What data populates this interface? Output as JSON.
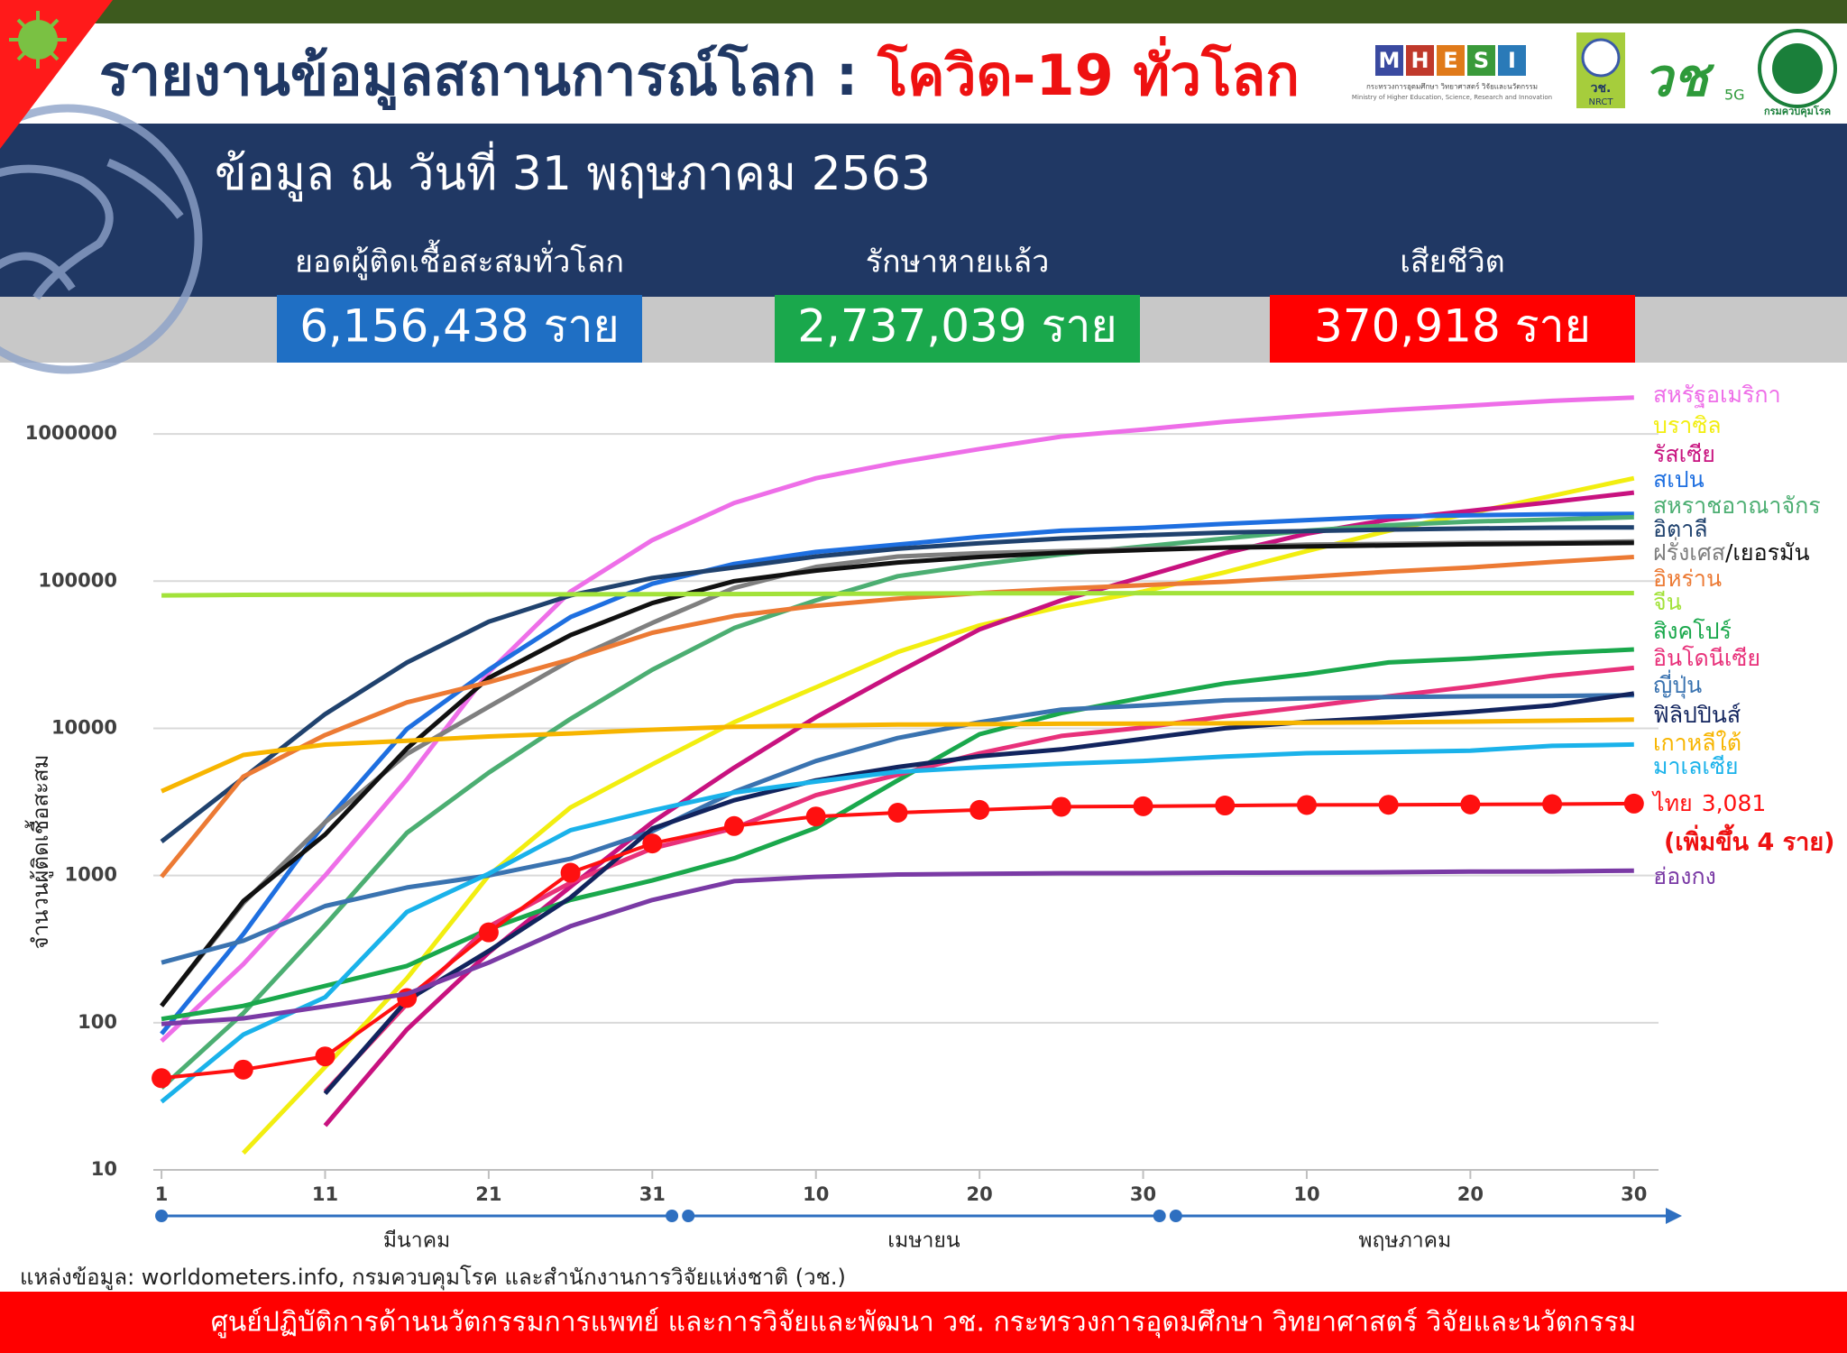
{
  "header": {
    "title": "รายงานข้อมูลสถานการณ์โลก : ",
    "title_highlight": "โควิด-19 ทั่วโลก",
    "date": "ข้อมูล ณ วันที่ 31 พฤษภาคม 2563"
  },
  "logos": {
    "mhesi": [
      "M",
      "H",
      "E",
      "S",
      "I"
    ],
    "mhesi_caption": "กระทรวงการอุดมศึกษา วิทยาศาสตร์ วิจัยและนวัตกรรม",
    "mhesi_caption_en": "Ministry of Higher Education, Science, Research and Innovation",
    "nrct": "วช.",
    "nrct_caption": "NRCT",
    "vch": "วช",
    "vch_5g": "5G",
    "ddc": "กรมควบคุมโรค"
  },
  "stats": [
    {
      "label": "ยอดผู้ติดเชื้อสะสมทั่วโลก",
      "value": "6,156,438 ราย"
    },
    {
      "label": "รักษาหายแล้ว",
      "value": "2,737,039 ราย"
    },
    {
      "label": "เสียชีวิต",
      "value": "370,918 ราย"
    }
  ],
  "chart_data": {
    "type": "line",
    "y_label": "จำนวนผู้ติดเชื้อสะสม",
    "log_y": true,
    "grid": true,
    "x": [
      1,
      6,
      11,
      16,
      21,
      26,
      31,
      36,
      41,
      46,
      51,
      56,
      61,
      66,
      71,
      76,
      81,
      86,
      91
    ],
    "xlim": [
      0.5,
      92.5
    ],
    "xticks": [
      1,
      11,
      21,
      31,
      {
        "value": 41,
        "label": "10"
      },
      {
        "value": 51,
        "label": "20"
      },
      {
        "value": 61,
        "label": "30"
      },
      {
        "value": 71,
        "label": "10"
      },
      {
        "value": 81,
        "label": "20"
      },
      {
        "value": 91,
        "label": "30"
      }
    ],
    "months": [
      "มีนาคม",
      "เมษายน",
      "พฤษภาคม"
    ],
    "ylim": [
      10,
      2000000
    ],
    "yticks": [
      10,
      100,
      1000,
      10000,
      100000,
      1000000
    ],
    "series": [
      {
        "name": "สหรัฐอเมริกา",
        "color": "#ee6ee8",
        "values": [
          75,
          250,
          1000,
          4500,
          24000,
          85000,
          190000,
          340000,
          500000,
          640000,
          790000,
          960000,
          1070000,
          1210000,
          1330000,
          1450000,
          1560000,
          1680000,
          1770000
        ]
      },
      {
        "name": "บราซิล",
        "color": "#f2ee10",
        "values": [
          null,
          13,
          50,
          200,
          1000,
          2900,
          5700,
          11000,
          19000,
          33000,
          50000,
          67000,
          85000,
          115000,
          160000,
          220000,
          290000,
          380000,
          500000
        ]
      },
      {
        "name": "รัสเซีย",
        "color": "#c8127f",
        "values": [
          null,
          null,
          20,
          90,
          300,
          840,
          2300,
          5400,
          11900,
          24000,
          47000,
          74000,
          107000,
          155000,
          210000,
          262000,
          300000,
          345000,
          400000
        ]
      },
      {
        "name": "สเปน",
        "color": "#1e6fe0",
        "values": [
          84,
          400,
          2300,
          9900,
          25000,
          57000,
          96000,
          131000,
          158000,
          177000,
          200000,
          220000,
          230000,
          245000,
          260000,
          275000,
          280000,
          285000,
          286000
        ]
      },
      {
        "name": "สหราชอาณาจักร",
        "color": "#4cae72",
        "values": [
          36,
          116,
          460,
          1950,
          5000,
          11600,
          25000,
          48000,
          74000,
          108000,
          130000,
          152000,
          172000,
          195000,
          220000,
          240000,
          254000,
          262000,
          272000
        ]
      },
      {
        "name": "อิตาลี",
        "color": "#20426e",
        "values": [
          1700,
          4600,
          12500,
          28000,
          53000,
          80000,
          105000,
          124000,
          147000,
          166000,
          181000,
          195000,
          205000,
          214000,
          219000,
          224000,
          228000,
          231000,
          232000
        ]
      },
      {
        "name": "ฝรั่งเศส",
        "color": "#7f7f7f",
        "values": [
          130,
          650,
          2300,
          6700,
          14000,
          29000,
          52000,
          90000,
          125000,
          147000,
          155000,
          160000,
          166000,
          170000,
          177000,
          179000,
          182000,
          183000,
          186000
        ]
      },
      {
        "name": "/เยอรมัน",
        "color": "#111111",
        "values": [
          130,
          670,
          1900,
          7300,
          22000,
          43000,
          71000,
          100000,
          118000,
          134000,
          146000,
          156000,
          163000,
          169000,
          172000,
          175000,
          178000,
          180000,
          182000
        ]
      },
      {
        "name": "อิหร่าน",
        "color": "#ec7a34",
        "values": [
          980,
          4700,
          9000,
          15000,
          20600,
          29400,
          44600,
          58000,
          68000,
          76000,
          83000,
          89000,
          94000,
          99000,
          107000,
          116000,
          124000,
          135000,
          146000
        ]
      },
      {
        "name": "จีน",
        "color": "#a2e23a",
        "values": [
          79968,
          80651,
          80921,
          81033,
          81300,
          81340,
          81554,
          81669,
          81907,
          82295,
          82747,
          82804,
          82862,
          82881,
          82901,
          82929,
          82960,
          82985,
          82995
        ]
      },
      {
        "name": "สิงคโปร์",
        "color": "#1aa84c",
        "values": [
          106,
          130,
          178,
          243,
          432,
          683,
          926,
          1309,
          2108,
          4427,
          9125,
          12693,
          16169,
          20198,
          23336,
          28038,
          29812,
          32343,
          34366
        ]
      },
      {
        "name": "อินโดนีเซีย",
        "color": "#e8317a",
        "values": [
          null,
          null,
          34,
          134,
          450,
          893,
          1528,
          2092,
          3512,
          4839,
          6760,
          8882,
          10118,
          12071,
          14032,
          16496,
          19189,
          22750,
          25773
        ]
      },
      {
        "name": "ญี่ปุ่น",
        "color": "#3a73b0",
        "values": [
          256,
          360,
          620,
          830,
          1000,
          1300,
          2000,
          3700,
          6000,
          8600,
          11000,
          13400,
          14300,
          15500,
          16000,
          16300,
          16500,
          16600,
          16800
        ]
      },
      {
        "name": "ฟิลิปปินส์",
        "color": "#12245e",
        "values": [
          null,
          null,
          33,
          142,
          307,
          707,
          2084,
          3246,
          4428,
          5453,
          6459,
          7192,
          8488,
          10004,
          11086,
          11876,
          12942,
          14319,
          17224
        ]
      },
      {
        "name": "เกาหลีใต้",
        "color": "#f7b500",
        "values": [
          3736,
          6593,
          7755,
          8236,
          8799,
          9241,
          9786,
          10237,
          10450,
          10613,
          10674,
          10738,
          10774,
          10822,
          10909,
          10991,
          11110,
          11265,
          11468
        ]
      },
      {
        "name": "มาเลเซีย",
        "color": "#1ab2ea",
        "values": [
          29,
          83,
          149,
          566,
          1030,
          2031,
          2766,
          3662,
          4346,
          5072,
          5425,
          5742,
          6002,
          6428,
          6779,
          6894,
          7059,
          7604,
          7762
        ]
      },
      {
        "name": "ไทย",
        "color": "#ff1010",
        "values": [
          42,
          48,
          59,
          147,
          411,
          1045,
          1651,
          2169,
          2518,
          2672,
          2792,
          2931,
          2954,
          2989,
          3015,
          3025,
          3040,
          3054,
          3081
        ],
        "value_labels": [
          null,
          null,
          null,
          null,
          null,
          null,
          null,
          null,
          null,
          null,
          null,
          null,
          null,
          null,
          null,
          null,
          null,
          null,
          "3,081"
        ],
        "markers": true
      },
      {
        "name": "ฮ่องกง",
        "color": "#7a3aa5",
        "values": [
          98,
          107,
          129,
          157,
          256,
          453,
          682,
          915,
          980,
          1017,
          1026,
          1037,
          1038,
          1045,
          1047,
          1053,
          1063,
          1066,
          1080
        ]
      }
    ],
    "annotation": "(เพิ่มขึ้น 4 ราย)"
  },
  "source": "แหล่งข้อมูล: worldometers.info, กรมควบคุมโรค และสำนักงานการวิจัยแห่งชาติ (วช.)",
  "footer": "ศูนย์ปฏิบัติการด้านนวัตกรรมการแพทย์ และการวิจัยและพัฒนา  วช.   กระทรวงการอุดมศึกษา วิทยาศาสตร์ วิจัยและนวัตกรรม"
}
